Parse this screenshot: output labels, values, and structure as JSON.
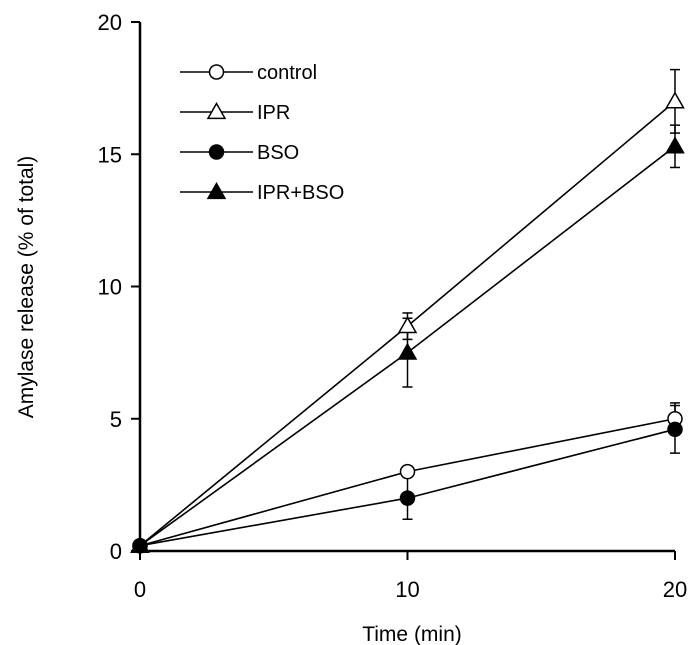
{
  "chart_data": {
    "type": "line",
    "xlabel": "Time (min)",
    "ylabel": "Amylase release (% of total)",
    "x": [
      0,
      10,
      20
    ],
    "xlim": [
      0,
      20
    ],
    "ylim": [
      0,
      20
    ],
    "xticks": [
      0,
      10,
      20
    ],
    "yticks": [
      0,
      5,
      10,
      15,
      20
    ],
    "legend_position": "top-left",
    "grid": false,
    "series": [
      {
        "name": "control",
        "marker": "open-circle",
        "values": [
          0.2,
          3.0,
          5.0
        ],
        "errors": [
          0.05,
          0.2,
          0.6
        ]
      },
      {
        "name": "IPR",
        "marker": "open-triangle",
        "values": [
          0.2,
          8.5,
          17.0
        ],
        "errors": [
          0.05,
          0.5,
          1.2
        ]
      },
      {
        "name": "BSO",
        "marker": "filled-circle",
        "values": [
          0.2,
          2.0,
          4.6
        ],
        "errors": [
          0.05,
          0.8,
          0.9
        ]
      },
      {
        "name": "IPR+BSO",
        "marker": "filled-triangle",
        "values": [
          0.2,
          7.5,
          15.3
        ],
        "errors": [
          0.05,
          1.3,
          0.8
        ]
      }
    ]
  }
}
